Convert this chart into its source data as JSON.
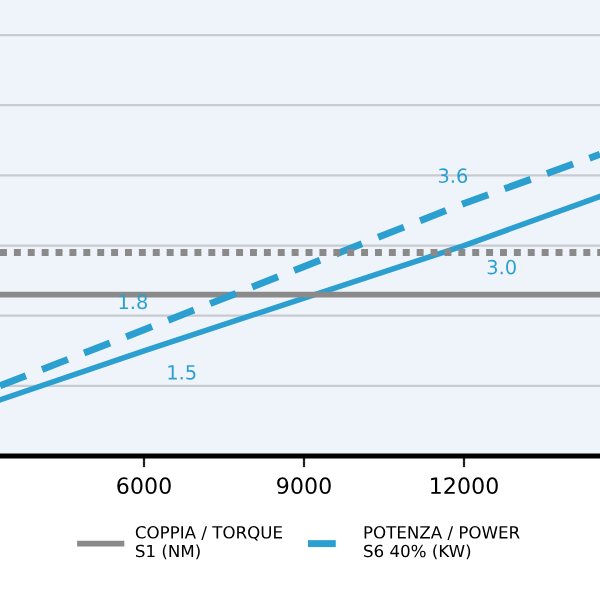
{
  "chart_data": {
    "type": "line",
    "x": [
      3300,
      6000,
      12000,
      14550
    ],
    "xlim": [
      3300,
      14550
    ],
    "xticks": [
      6000,
      9000,
      12000
    ],
    "ylim": [
      0,
      6.5
    ],
    "yticks": [
      {
        "value": 1,
        "label": null
      },
      {
        "value": 2,
        "label": null
      },
      {
        "value": 3,
        "label": null
      },
      {
        "value": 4,
        "label": null
      },
      {
        "value": 5,
        "label": null
      },
      {
        "value": 6,
        "label": null
      }
    ],
    "grid": "y",
    "legend": "bottom",
    "tick_labels": "x",
    "series": [
      {
        "color": "#2a9fd0",
        "line_style": "solid",
        "values": [
          0.8,
          1.5,
          3.0,
          3.7
        ],
        "value_labels": [
          null,
          "1.5",
          "3.0",
          null
        ]
      },
      {
        "name": "COPPIA / TORQUE\nS1 (NM)",
        "color": "#8a8a8a",
        "line_style": "solid",
        "values": [
          2.3,
          2.3,
          2.3,
          2.3
        ]
      },
      {
        "name": "POTENZA / POWER\nS6 40% (KW)",
        "color": "#2a9fd0",
        "line_style": "dashed",
        "values": [
          1.0,
          1.8,
          3.6,
          4.3
        ],
        "value_labels": [
          null,
          "1.8",
          "3.6",
          null
        ]
      },
      {
        "color": "#8a8a8a",
        "line_style": "dotted",
        "values": [
          2.9,
          2.9,
          2.9,
          2.9
        ]
      }
    ]
  }
}
